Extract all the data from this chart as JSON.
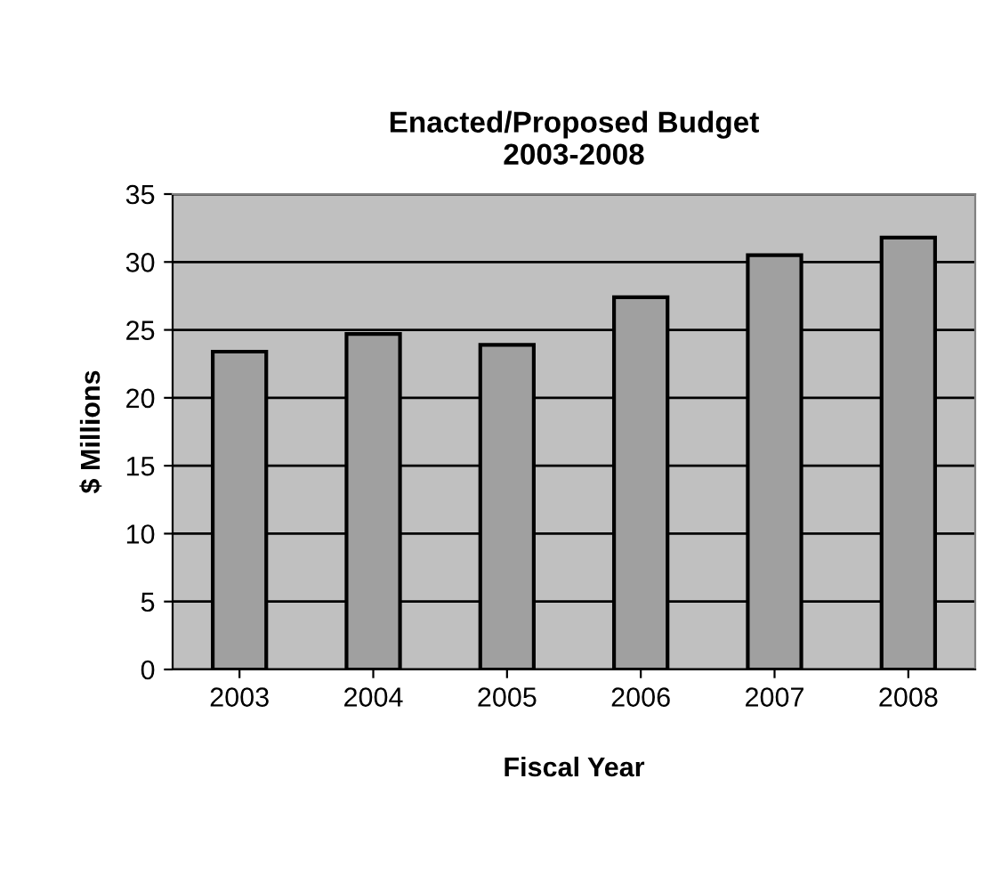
{
  "chart_data": {
    "type": "bar",
    "title": "Enacted/Proposed Budget\n2003-2008",
    "xlabel": "Fiscal Year",
    "ylabel": "$ Millions",
    "categories": [
      "2003",
      "2004",
      "2005",
      "2006",
      "2007",
      "2008"
    ],
    "values": [
      23.4,
      24.7,
      23.9,
      27.4,
      30.5,
      31.8
    ],
    "color": "#a0a0a0",
    "ylim": [
      0,
      35
    ],
    "yticks": [
      0,
      5,
      10,
      15,
      20,
      25,
      30,
      35
    ],
    "grid": "y"
  }
}
